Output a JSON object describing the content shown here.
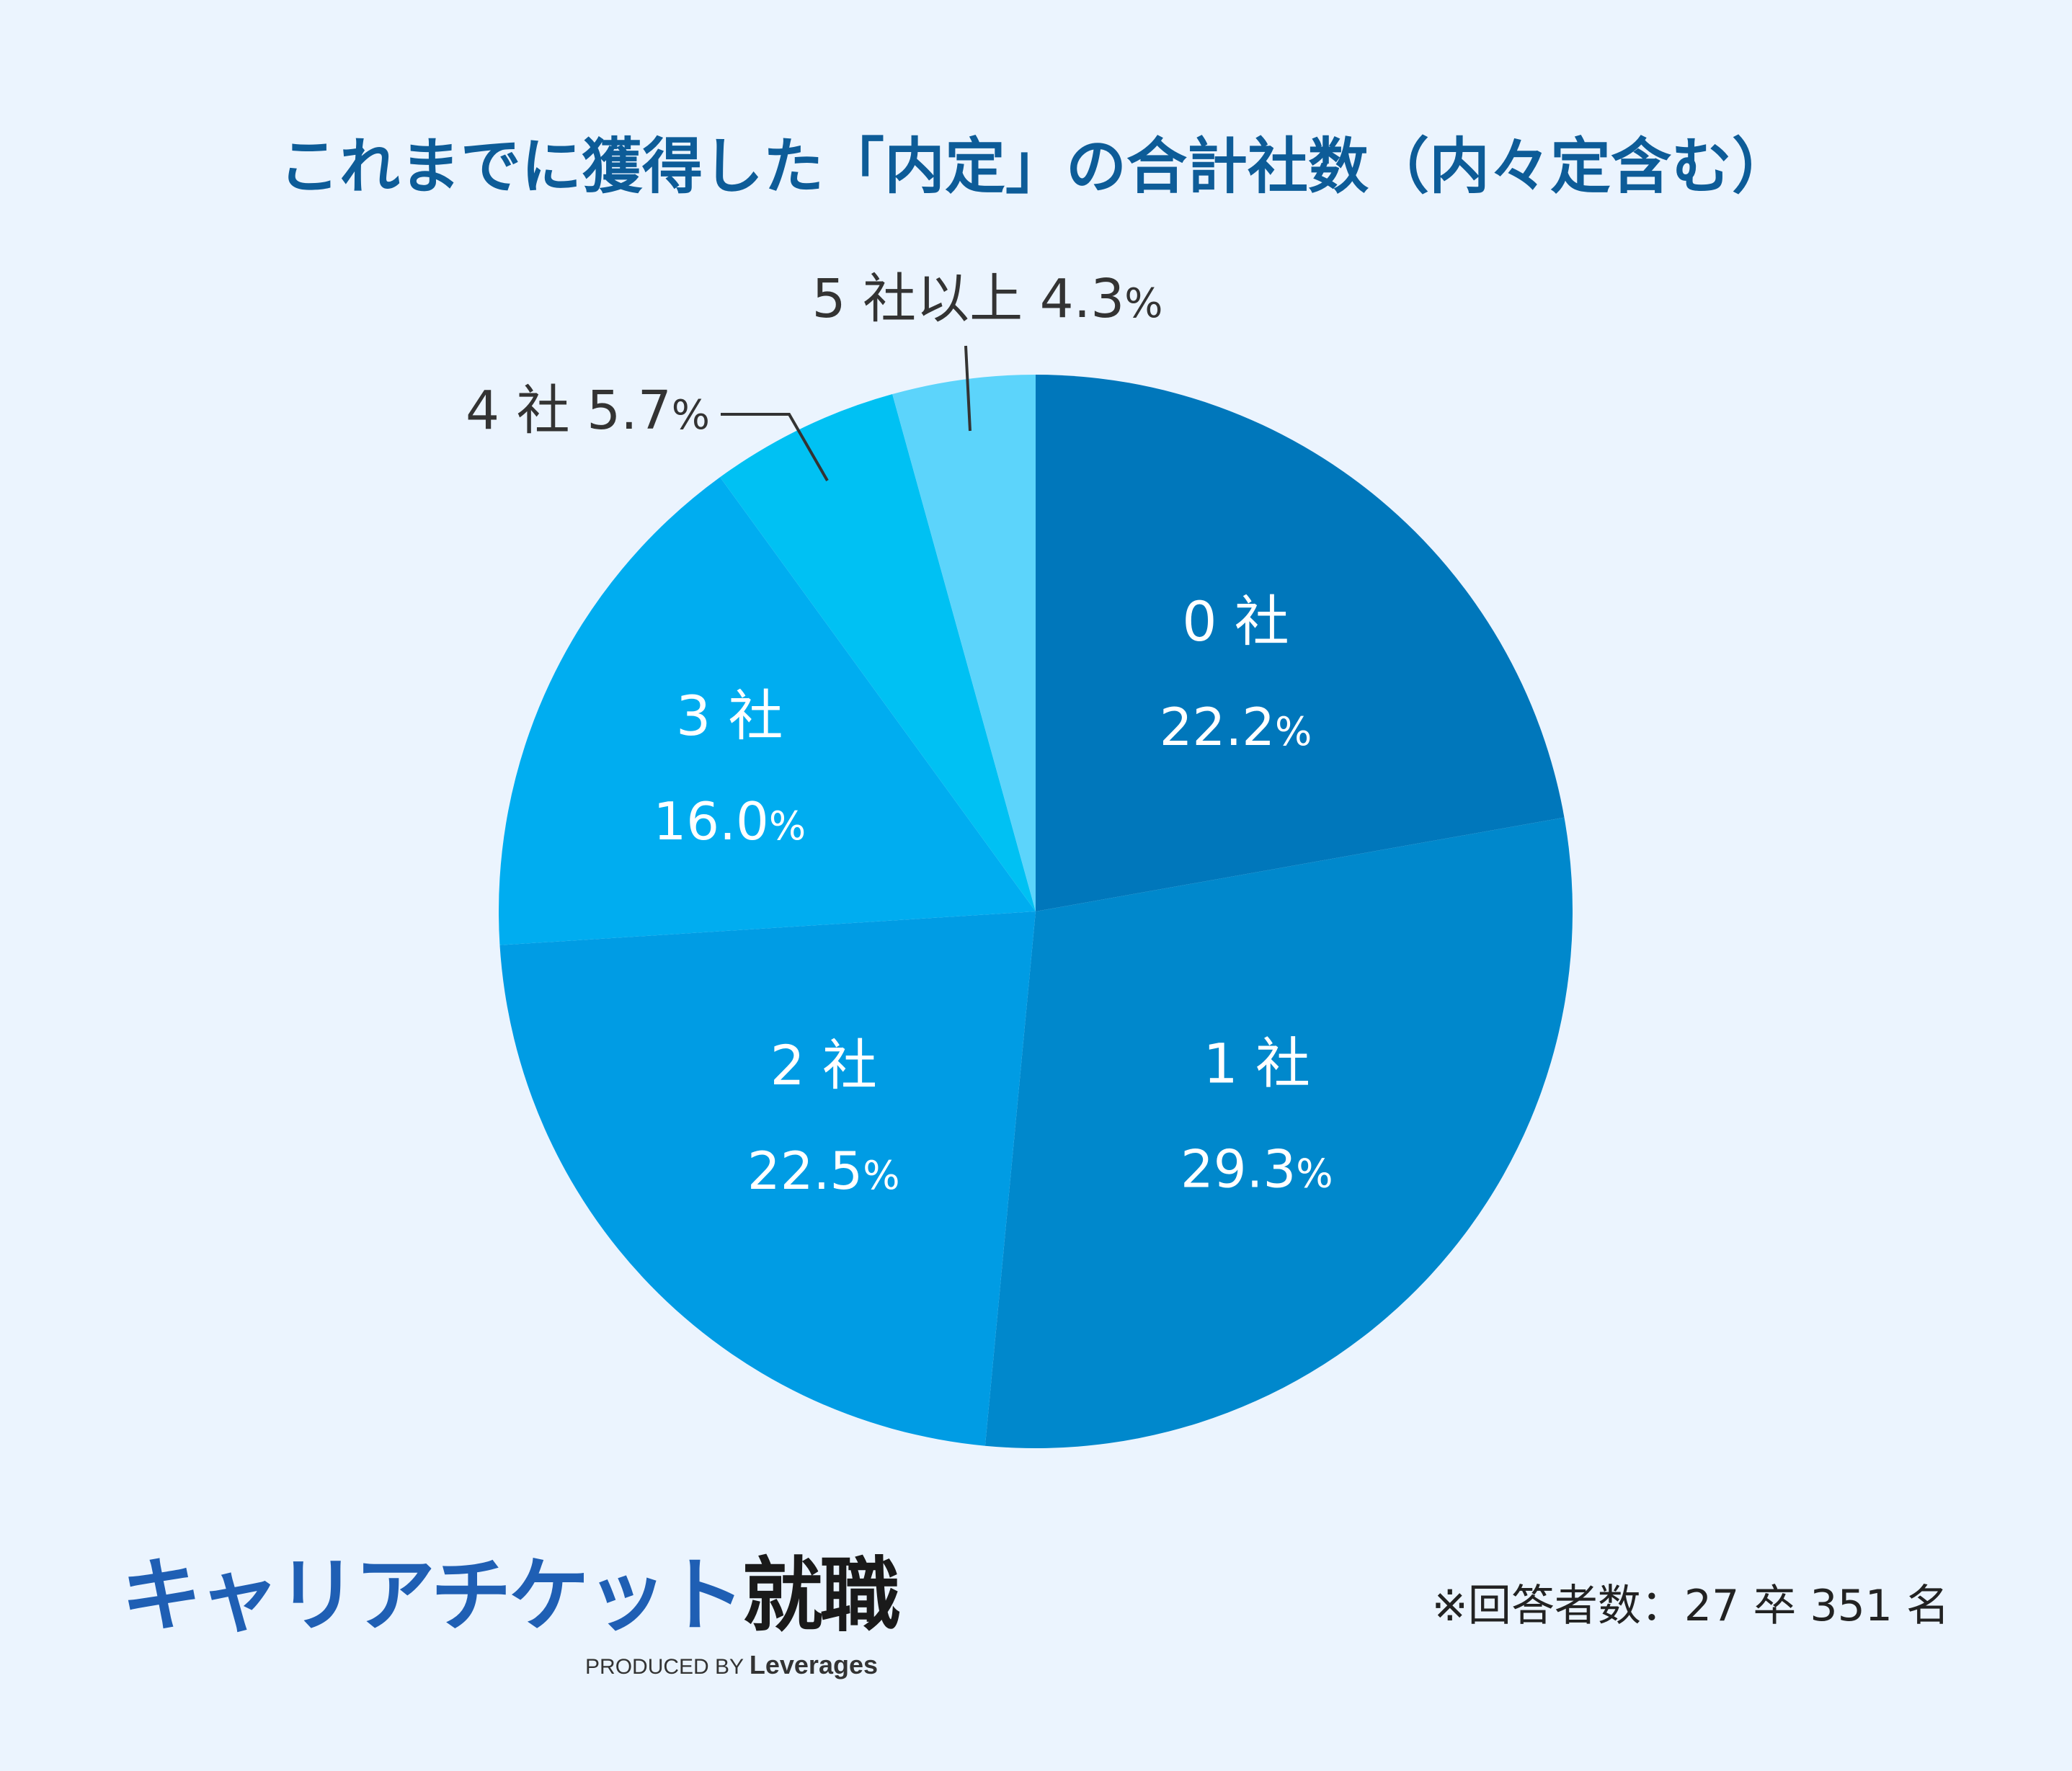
{
  "chart_data": {
    "type": "pie",
    "title": "これまでに獲得した「内定」の合計社数（内々定含む）",
    "start": "top, clockwise",
    "slices": [
      {
        "label": "0 社",
        "value": 22.2,
        "value_label": "22.2",
        "unit": "%",
        "color": "#0077bb",
        "label_pos": "inside"
      },
      {
        "label": "1 社",
        "value": 29.3,
        "value_label": "29.3",
        "unit": "%",
        "color": "#0088cc",
        "label_pos": "inside"
      },
      {
        "label": "2 社",
        "value": 22.5,
        "value_label": "22.5",
        "unit": "%",
        "color": "#009ce4",
        "label_pos": "inside"
      },
      {
        "label": "3 社",
        "value": 16.0,
        "value_label": "16.0",
        "unit": "%",
        "color": "#00adf0",
        "label_pos": "inside"
      },
      {
        "label": "4 社",
        "value": 5.7,
        "value_label": "5.7",
        "unit": "%",
        "color": "#00c1f3",
        "label_pos": "outside"
      },
      {
        "label": "5 社以上",
        "value": 4.3,
        "value_label": "4.3",
        "unit": "%",
        "color": "#5cd4fb",
        "label_pos": "outside"
      }
    ]
  },
  "colors": {
    "background": "#ebf4fe",
    "title": "#0d5c98",
    "leader_line": "#333333"
  },
  "logo": {
    "katakana": "キャリアチケット",
    "kanji": "就職",
    "produced_by": "PRODUCED BY",
    "brand": "Leverages"
  },
  "footnote": "※回答者数：27 卒 351 名"
}
